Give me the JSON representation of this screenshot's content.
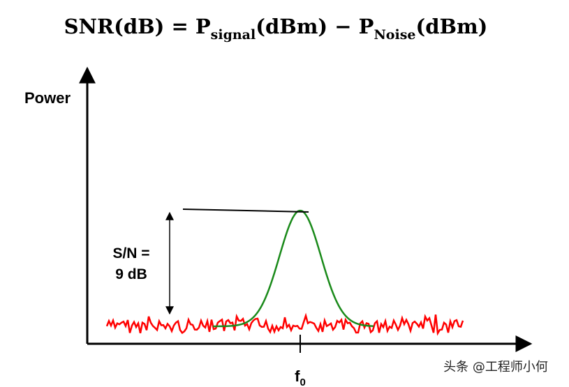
{
  "formula": {
    "lhs": "SNR(dB) = P",
    "sub1": "signal",
    "mid": "(dBm) − P",
    "sub2": "Noise",
    "end": "(dBm)"
  },
  "y_axis_label": "Power",
  "annotation": {
    "line1": "S/N =",
    "line2": "9 dB"
  },
  "x_tick": {
    "label": "f",
    "sub": "0"
  },
  "watermark": "头条 @工程师小何"
}
